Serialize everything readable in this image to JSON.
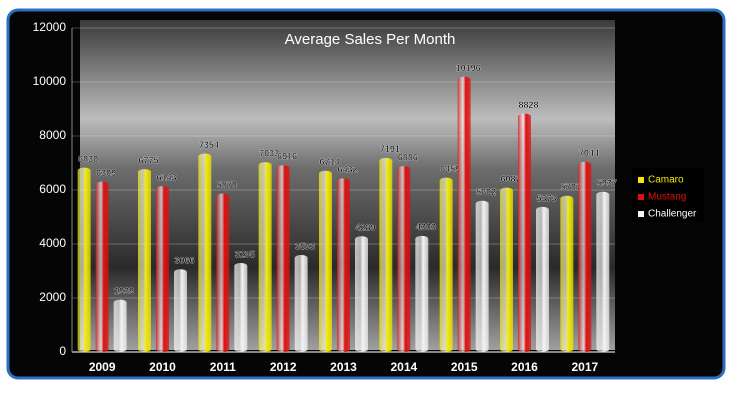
{
  "chart_data": {
    "type": "bar",
    "title": "Average Sales Per Month",
    "categories": [
      "2009",
      "2010",
      "2011",
      "2012",
      "2013",
      "2014",
      "2015",
      "2016",
      "2017"
    ],
    "series": [
      {
        "name": "Camaro",
        "color": "#f2ea00",
        "values": [
          6830,
          6775,
          7354,
          7033,
          6714,
          7191,
          6459,
          6087,
          5787
        ]
      },
      {
        "name": "Mustang",
        "color": "#e01010",
        "values": [
          6309,
          6143,
          5870,
          6916,
          6432,
          6886,
          10196,
          8828,
          7044
        ]
      },
      {
        "name": "Challenger",
        "color": "#f2f2f2",
        "values": [
          1939,
          3066,
          3295,
          3593,
          4289,
          4303,
          5602,
          5373,
          5937
        ]
      }
    ],
    "ylim": [
      0,
      12000
    ],
    "yticks": [
      0,
      2000,
      4000,
      6000,
      8000,
      10000,
      12000
    ],
    "grid": true,
    "legend": "right"
  }
}
